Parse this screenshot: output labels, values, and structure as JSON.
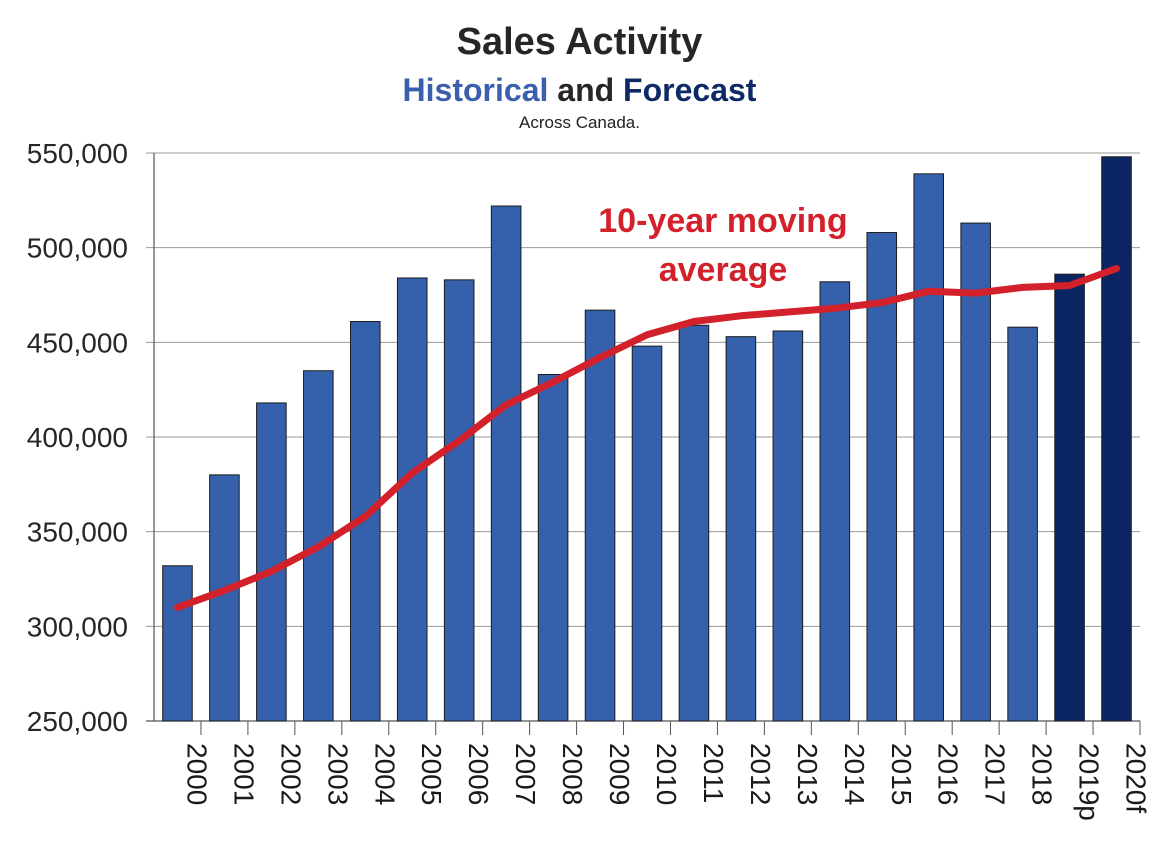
{
  "chart_data": {
    "type": "bar",
    "title": "Sales Activity",
    "subtitle_parts": [
      "Historical",
      "and",
      "Forecast"
    ],
    "note": "Across Canada.",
    "categories": [
      "2000",
      "2001",
      "2002",
      "2003",
      "2004",
      "2005",
      "2006",
      "2007",
      "2008",
      "2009",
      "2010",
      "2011",
      "2012",
      "2013",
      "2014",
      "2015",
      "2016",
      "2017",
      "2018",
      "2019p",
      "2020f"
    ],
    "series": [
      {
        "values": [
          332000,
          380000,
          418000,
          435000,
          461000,
          484000,
          483000,
          522000,
          433000,
          467000,
          448000,
          459000,
          453000,
          456000,
          482000,
          508000,
          539000,
          513000,
          458000,
          486000,
          548000
        ],
        "colors": {
          "historical": "#3560ab",
          "forecast": "#0b2462"
        }
      },
      {
        "name": "10-year moving average",
        "type": "line",
        "color": "#d2212a",
        "values": [
          310000,
          319000,
          329000,
          342000,
          358000,
          381000,
          398000,
          417000,
          429000,
          442000,
          454000,
          461000,
          464000,
          466000,
          468000,
          471000,
          477000,
          476000,
          479000,
          480000,
          489000
        ]
      }
    ],
    "forecast_categories": [
      "2019p",
      "2020f"
    ],
    "annotation": [
      "10-year moving",
      "average"
    ],
    "ylim": [
      250000,
      550000
    ],
    "yticks": [
      250000,
      300000,
      350000,
      400000,
      450000,
      500000,
      550000
    ],
    "ytick_labels": [
      "250,000",
      "300,000",
      "350,000",
      "400,000",
      "450,000",
      "500,000",
      "550,000"
    ],
    "xlabel": "",
    "ylabel": "",
    "grid": true
  }
}
